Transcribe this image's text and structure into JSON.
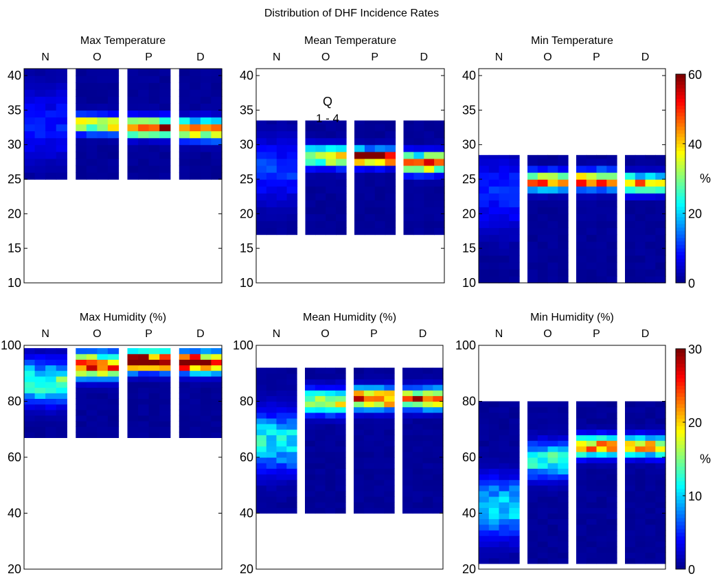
{
  "figure_title": "Distribution of DHF Incidence Rates",
  "annotation": {
    "line1": "Q",
    "line2": "1 - 4"
  },
  "colorbar_unit": "%",
  "colormap": [
    "#00008f",
    "#0000ff",
    "#0080ff",
    "#00ffff",
    "#80ff80",
    "#ffff00",
    "#ff8000",
    "#ff0000",
    "#800000"
  ],
  "chart_data": [
    {
      "type": "heatmap",
      "title": "Max Temperature",
      "categories": [
        "N",
        "O",
        "P",
        "D"
      ],
      "ylim": [
        10,
        41
      ],
      "yticks": [
        10,
        15,
        20,
        25,
        30,
        35,
        40
      ],
      "cmax": 60,
      "data_range": [
        25,
        41
      ],
      "peaks": [
        {
          "center": 33,
          "width": 3.5,
          "peak": 8
        },
        {
          "center": 33,
          "width": 0.9,
          "peak": 38
        },
        {
          "center": 32.6,
          "width": 0.9,
          "peak": 50
        },
        {
          "center": 32.2,
          "width": 1.0,
          "peak": 44
        }
      ]
    },
    {
      "type": "heatmap",
      "title": "Mean Temperature",
      "categories": [
        "N",
        "O",
        "P",
        "D"
      ],
      "ylim": [
        10,
        41
      ],
      "yticks": [
        10,
        15,
        20,
        25,
        30,
        35,
        40
      ],
      "cmax": 60,
      "data_range": [
        17,
        33.5
      ],
      "peaks": [
        {
          "center": 26.5,
          "width": 3.0,
          "peak": 10
        },
        {
          "center": 28.3,
          "width": 1.0,
          "peak": 38
        },
        {
          "center": 28.2,
          "width": 0.8,
          "peak": 58
        },
        {
          "center": 27.4,
          "width": 1.0,
          "peak": 46
        }
      ]
    },
    {
      "type": "heatmap",
      "title": "Min Temperature",
      "categories": [
        "N",
        "O",
        "P",
        "D"
      ],
      "ylim": [
        10,
        41
      ],
      "yticks": [
        10,
        15,
        20,
        25,
        30,
        35,
        40
      ],
      "cmax": 60,
      "data_range": [
        10,
        28.5
      ],
      "peaks": [
        {
          "center": 23,
          "width": 3.5,
          "peak": 9
        },
        {
          "center": 24.8,
          "width": 0.9,
          "peak": 44
        },
        {
          "center": 24.9,
          "width": 0.9,
          "peak": 47
        },
        {
          "center": 24.4,
          "width": 0.9,
          "peak": 43
        }
      ],
      "colorbar": {
        "ticks": [
          0,
          20,
          40,
          60
        ],
        "max": 60
      }
    },
    {
      "type": "heatmap",
      "title": "Max Humidity (%)",
      "categories": [
        "N",
        "O",
        "P",
        "D"
      ],
      "ylim": [
        20,
        100
      ],
      "yticks": [
        20,
        40,
        60,
        80,
        100
      ],
      "cmax": 30,
      "data_range": [
        67,
        99
      ],
      "peaks": [
        {
          "center": 87,
          "width": 5,
          "peak": 13
        },
        {
          "center": 93,
          "width": 3,
          "peak": 24
        },
        {
          "center": 94.5,
          "width": 2.5,
          "peak": 29
        },
        {
          "center": 94,
          "width": 2.5,
          "peak": 29
        }
      ]
    },
    {
      "type": "heatmap",
      "title": "Mean Humidity (%)",
      "categories": [
        "N",
        "O",
        "P",
        "D"
      ],
      "ylim": [
        20,
        100
      ],
      "yticks": [
        20,
        40,
        60,
        80,
        100
      ],
      "cmax": 30,
      "data_range": [
        40,
        92
      ],
      "peaks": [
        {
          "center": 66,
          "width": 7,
          "peak": 11
        },
        {
          "center": 80,
          "width": 3,
          "peak": 17
        },
        {
          "center": 81,
          "width": 2.5,
          "peak": 25
        },
        {
          "center": 81,
          "width": 2.5,
          "peak": 24
        }
      ]
    },
    {
      "type": "heatmap",
      "title": "Min Humidity (%)",
      "categories": [
        "N",
        "O",
        "P",
        "D"
      ],
      "ylim": [
        20,
        100
      ],
      "yticks": [
        20,
        40,
        60,
        80,
        100
      ],
      "cmax": 30,
      "data_range": [
        22,
        80
      ],
      "peaks": [
        {
          "center": 42,
          "width": 7,
          "peak": 10
        },
        {
          "center": 59,
          "width": 4,
          "peak": 13
        },
        {
          "center": 64,
          "width": 2.5,
          "peak": 21
        },
        {
          "center": 64,
          "width": 2.5,
          "peak": 20
        }
      ],
      "colorbar": {
        "ticks": [
          0,
          10,
          20,
          30
        ],
        "max": 30
      }
    }
  ]
}
